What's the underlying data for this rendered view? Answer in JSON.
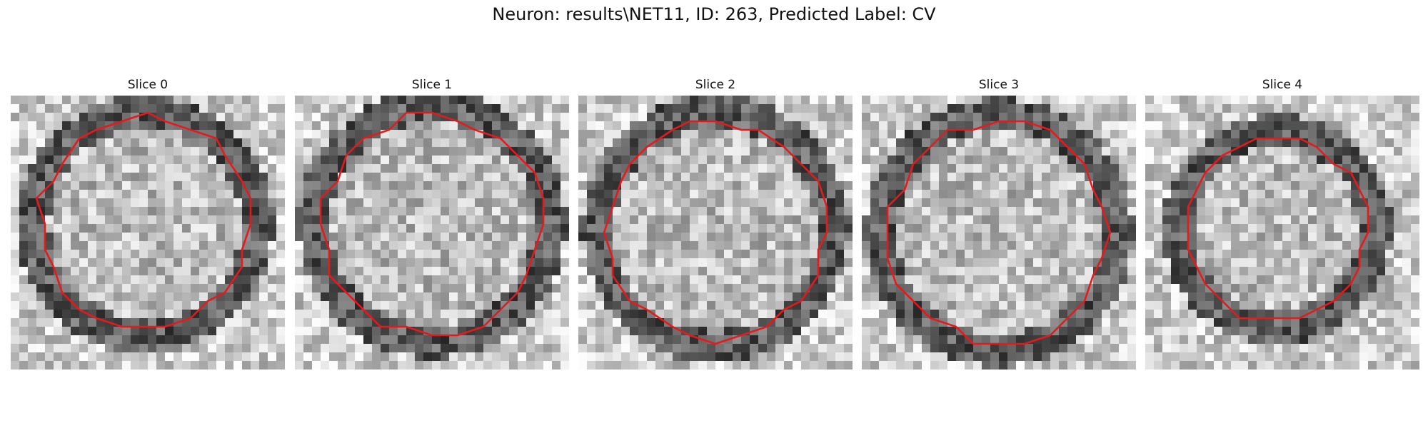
{
  "suptitle": "Neuron: results\\NET11, ID: 263, Predicted Label: CV",
  "colors": {
    "contour": "#e41a1c"
  },
  "panels": [
    {
      "title": "Slice 0"
    },
    {
      "title": "Slice 1"
    },
    {
      "title": "Slice 2"
    },
    {
      "title": "Slice 3"
    },
    {
      "title": "Slice 4"
    }
  ]
}
